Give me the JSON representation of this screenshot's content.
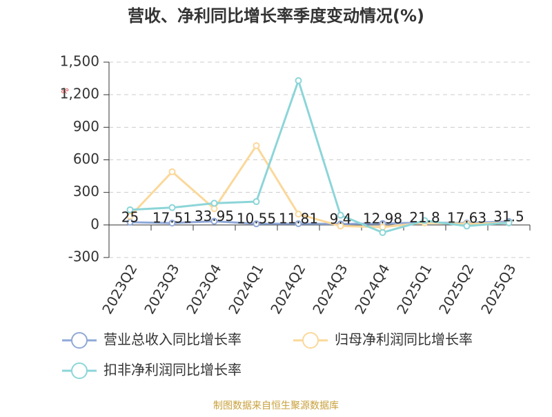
{
  "chart_data": {
    "type": "line",
    "title": "营收、净利同比增长率季度变动情况(%)",
    "y_label": "%",
    "categories": [
      "2023Q2",
      "2023Q3",
      "2023Q4",
      "2024Q1",
      "2024Q2",
      "2024Q3",
      "2024Q4",
      "2025Q1",
      "2025Q2",
      "2025Q3"
    ],
    "series": [
      {
        "name": "营业总收入同比增长率",
        "color": "#8fa8d8",
        "values": [
          25,
          17.51,
          33.95,
          10.55,
          11.81,
          9.4,
          12.98,
          21.8,
          17.63,
          31.5
        ],
        "show_labels": true
      },
      {
        "name": "归母净利润同比增长率",
        "color": "#fbd89a",
        "values": [
          80,
          490,
          150,
          730,
          100,
          -10,
          -20,
          20,
          10,
          20
        ]
      },
      {
        "name": "扣非净利润同比增长率",
        "color": "#8cd5d8",
        "values": [
          140,
          160,
          200,
          215,
          1330,
          90,
          -70,
          40,
          -10,
          20
        ]
      }
    ],
    "ylim": [
      -300,
      1500
    ],
    "yticks": [
      -300,
      0,
      300,
      600,
      900,
      {
        "value": 1200,
        "label": "1,200"
      },
      {
        "value": 1500,
        "label": "1,500"
      }
    ],
    "grid": true,
    "legend": "bottom",
    "source": "制图数据来自恒生聚源数据库"
  }
}
